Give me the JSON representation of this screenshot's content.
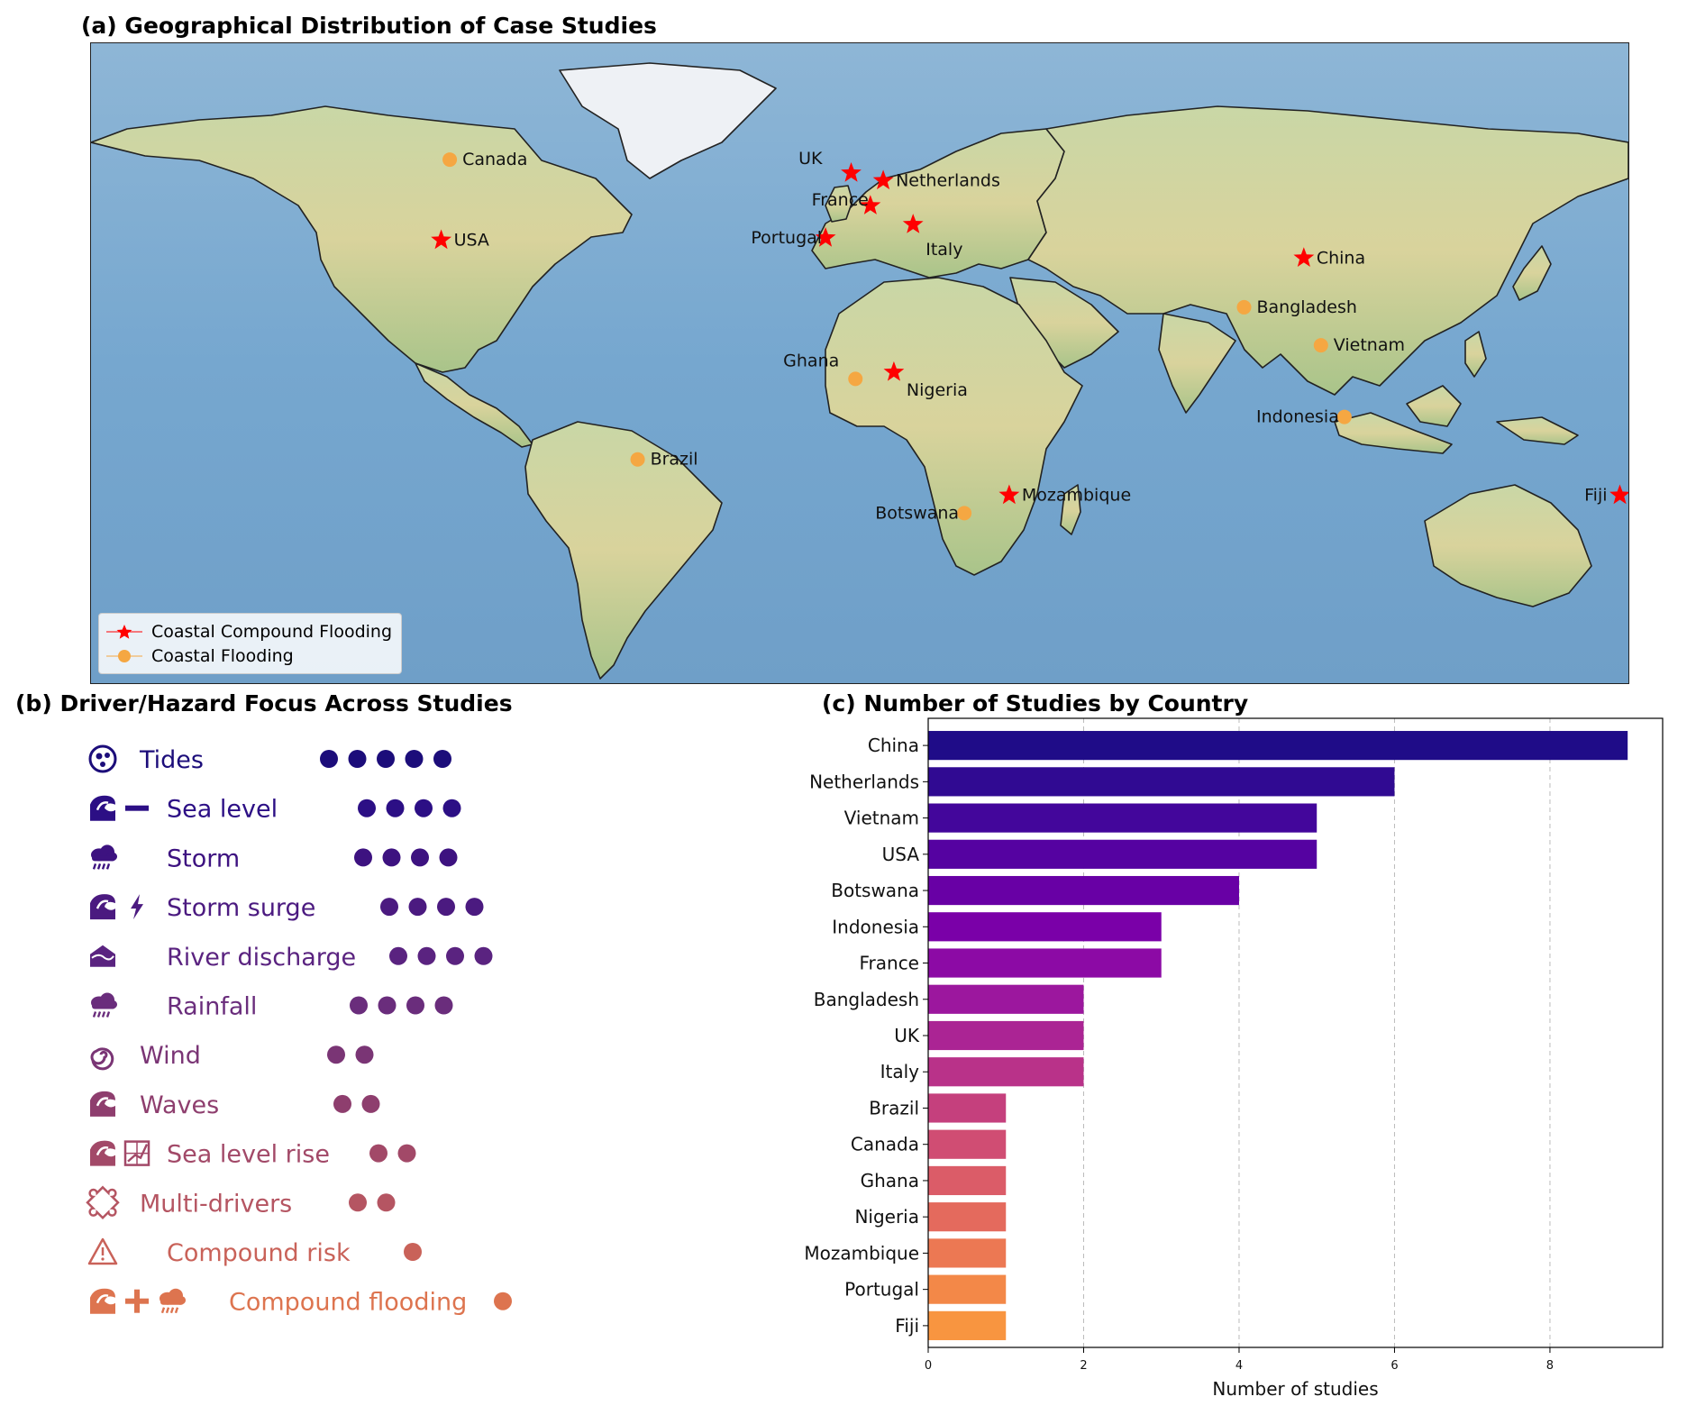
{
  "panel_a": {
    "title": "(a) Geographical Distribution of Case Studies",
    "legend": [
      {
        "label": "Coastal Compound Flooding",
        "marker": "star",
        "color": "#ff0000"
      },
      {
        "label": "Coastal Flooding",
        "marker": "circle",
        "color": "#f5a742"
      }
    ],
    "points": [
      {
        "name": "Canada",
        "lon": -96,
        "lat": 57,
        "type": "Coastal Flooding"
      },
      {
        "name": "USA",
        "lon": -98,
        "lat": 39,
        "type": "Coastal Compound Flooding"
      },
      {
        "name": "UK",
        "lon": -2,
        "lat": 54,
        "type": "Coastal Compound Flooding"
      },
      {
        "name": "Netherlands",
        "lon": 5.5,
        "lat": 52.3,
        "type": "Coastal Compound Flooding"
      },
      {
        "name": "France",
        "lon": 2.5,
        "lat": 46.7,
        "type": "Coastal Compound Flooding"
      },
      {
        "name": "Portugal",
        "lon": -8,
        "lat": 39.5,
        "type": "Coastal Compound Flooding"
      },
      {
        "name": "Italy",
        "lon": 12.5,
        "lat": 42.5,
        "type": "Coastal Compound Flooding"
      },
      {
        "name": "China",
        "lon": 104,
        "lat": 35,
        "type": "Coastal Compound Flooding"
      },
      {
        "name": "Bangladesh",
        "lon": 90,
        "lat": 24,
        "type": "Coastal Flooding"
      },
      {
        "name": "Vietnam",
        "lon": 108,
        "lat": 15.5,
        "type": "Coastal Flooding"
      },
      {
        "name": "Ghana",
        "lon": -1,
        "lat": 8,
        "type": "Coastal Flooding"
      },
      {
        "name": "Nigeria",
        "lon": 8,
        "lat": 9.5,
        "type": "Coastal Compound Flooding"
      },
      {
        "name": "Indonesia",
        "lon": 113.5,
        "lat": -0.5,
        "type": "Coastal Flooding"
      },
      {
        "name": "Brazil",
        "lon": -52,
        "lat": -10,
        "type": "Coastal Flooding"
      },
      {
        "name": "Botswana",
        "lon": 24.5,
        "lat": -22,
        "type": "Coastal Flooding"
      },
      {
        "name": "Mozambique",
        "lon": 35,
        "lat": -18,
        "type": "Coastal Compound Flooding"
      },
      {
        "name": "Fiji",
        "lon": 178,
        "lat": -18,
        "type": "Coastal Compound Flooding"
      }
    ]
  },
  "panel_b": {
    "title": "(b) Driver/Hazard Focus Across Studies",
    "drivers": [
      {
        "label": "Tides",
        "count": 5,
        "color": "#1c0d7a",
        "icons": [
          "tide-icon"
        ]
      },
      {
        "label": "Sea level",
        "count": 4,
        "color": "#2c0f85",
        "icons": [
          "wave-icon",
          "minus-icon"
        ]
      },
      {
        "label": "Storm",
        "count": 4,
        "color": "#3d1280",
        "icons": [
          "storm-cloud-icon"
        ]
      },
      {
        "label": "Storm surge",
        "count": 4,
        "color": "#4b1a80",
        "icons": [
          "wave-icon",
          "lightning-icon"
        ]
      },
      {
        "label": "River discharge",
        "count": 4,
        "color": "#5a2380",
        "icons": [
          "river-icon"
        ]
      },
      {
        "label": "Rainfall",
        "count": 4,
        "color": "#6a2d7c",
        "icons": [
          "rain-cloud-icon"
        ]
      },
      {
        "label": "Wind",
        "count": 2,
        "color": "#7a3575",
        "icons": [
          "spiral-icon"
        ]
      },
      {
        "label": "Waves",
        "count": 2,
        "color": "#8e3e6e",
        "icons": [
          "wave-icon"
        ]
      },
      {
        "label": "Sea level rise",
        "count": 2,
        "color": "#a24968",
        "icons": [
          "wave-icon",
          "chart-icon"
        ]
      },
      {
        "label": "Multi-drivers",
        "count": 2,
        "color": "#b55562",
        "icons": [
          "puzzle-icon"
        ]
      },
      {
        "label": "Compound risk",
        "count": 1,
        "color": "#c96259",
        "icons": [
          "warning-icon"
        ]
      },
      {
        "label": "Compound flooding",
        "count": 1,
        "color": "#dd744f",
        "icons": [
          "wave-icon",
          "plus-icon",
          "rain-cloud-icon"
        ]
      }
    ]
  },
  "panel_c": {
    "title": "(c) Number of Studies by Country",
    "chart_data": {
      "type": "bar",
      "orientation": "horizontal",
      "categories": [
        "China",
        "Netherlands",
        "Vietnam",
        "USA",
        "Botswana",
        "Indonesia",
        "France",
        "Bangladesh",
        "UK",
        "Italy",
        "Brazil",
        "Canada",
        "Ghana",
        "Nigeria",
        "Mozambique",
        "Portugal",
        "Fiji"
      ],
      "values": [
        9,
        6,
        5,
        5,
        4,
        3,
        3,
        2,
        2,
        2,
        1,
        1,
        1,
        1,
        1,
        1,
        1
      ],
      "xlabel": "Number of studies",
      "ylabel": "",
      "xlim": [
        0,
        9.45
      ],
      "xticks": [
        0,
        2,
        4,
        6,
        8
      ],
      "grid": "x-dashed",
      "colors": [
        "#1f0c88",
        "#300a92",
        "#43069b",
        "#5502a1",
        "#6800a5",
        "#7a00a8",
        "#8c0aa5",
        "#9c179e",
        "#ab2494",
        "#b93289",
        "#c5407d",
        "#d04d73",
        "#db5c68",
        "#e46a5d",
        "#ec7853",
        "#f38848",
        "#f89540"
      ]
    }
  }
}
